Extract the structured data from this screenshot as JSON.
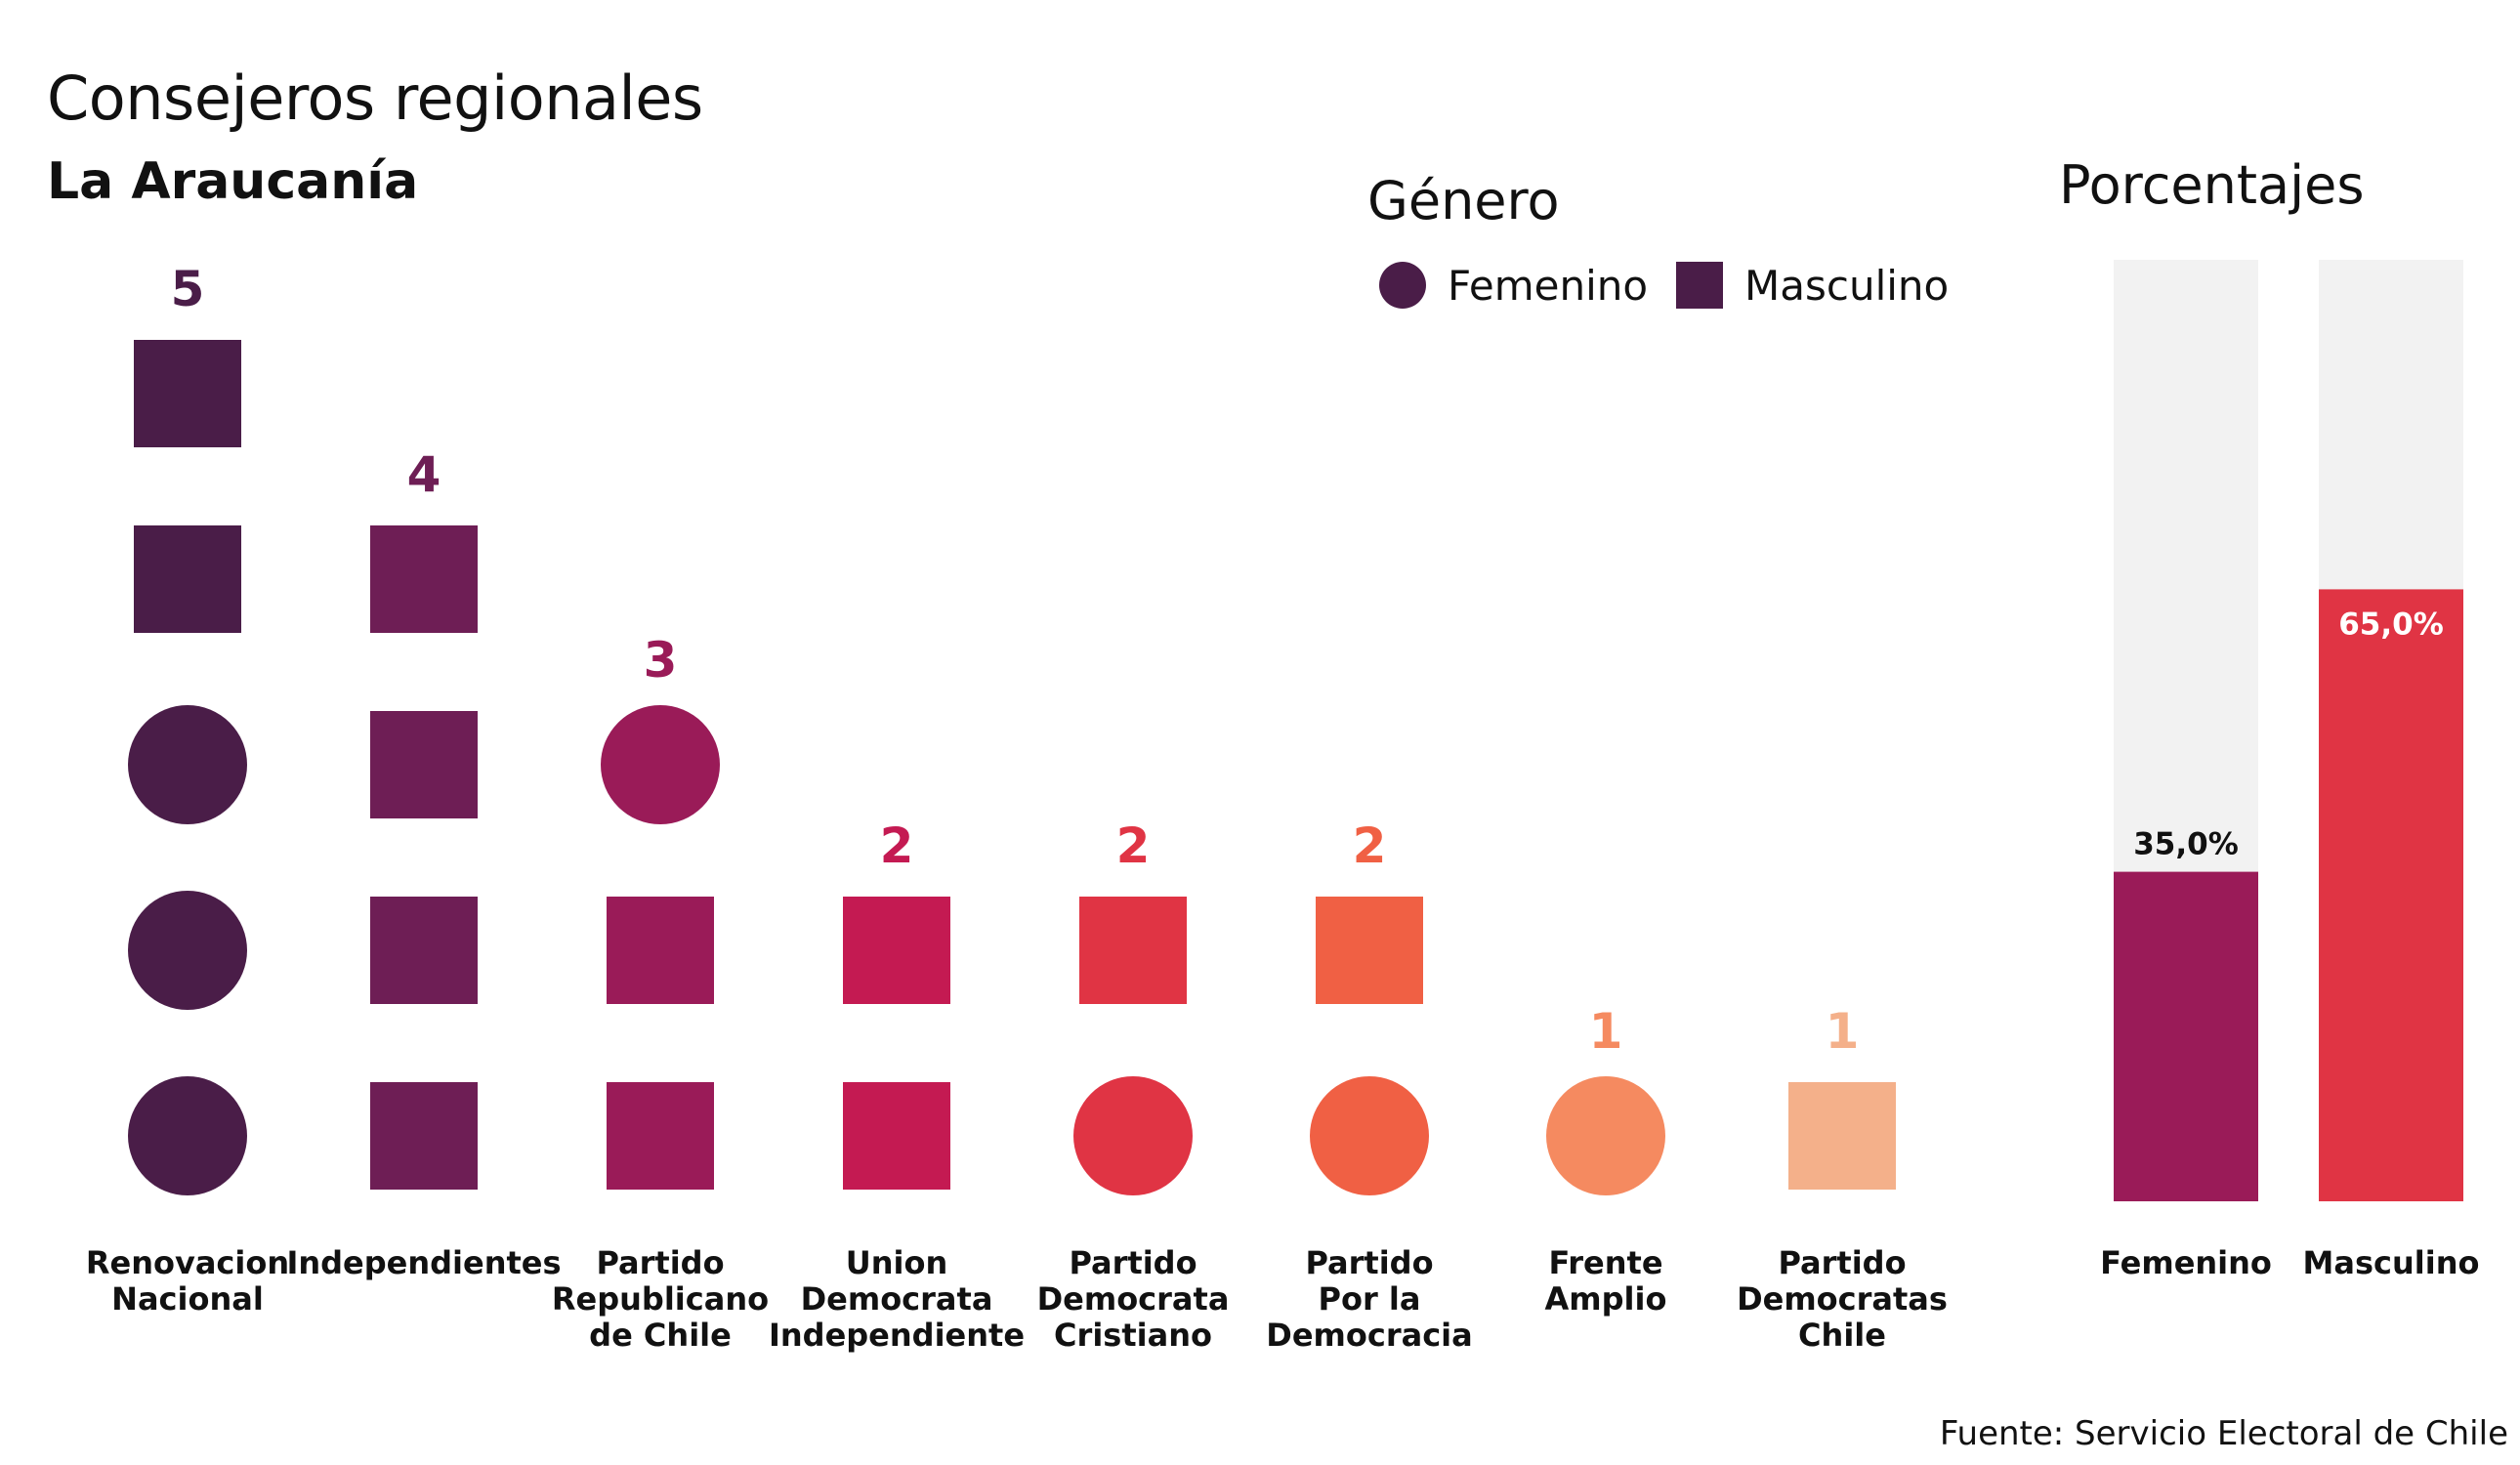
{
  "title": "Consejeros regionales",
  "subtitle": "La Araucanía",
  "source": "Fuente: Servicio Electoral de Chile",
  "legend": {
    "title": "Género",
    "items": [
      {
        "label": "Femenino",
        "shape": "circle"
      },
      {
        "label": "Masculino",
        "shape": "square"
      }
    ],
    "color": "#4a1d48"
  },
  "percent_panel_title": "Porcentajes",
  "chart_data": [
    {
      "type": "unit-stack",
      "categories": [
        {
          "label": [
            "Renovacion",
            "Nacional"
          ],
          "total": "5",
          "color": "#4a1d48",
          "units_bottom_to_top": [
            "Femenino",
            "Femenino",
            "Femenino",
            "Masculino",
            "Masculino"
          ]
        },
        {
          "label": [
            "Independientes"
          ],
          "total": "4",
          "color": "#6e1e55",
          "units_bottom_to_top": [
            "Masculino",
            "Masculino",
            "Masculino",
            "Masculino"
          ]
        },
        {
          "label": [
            "Partido",
            "Republicano",
            "de Chile"
          ],
          "total": "3",
          "color": "#9a1b58",
          "units_bottom_to_top": [
            "Masculino",
            "Masculino",
            "Femenino"
          ]
        },
        {
          "label": [
            "Union",
            "Democrata",
            "Independiente"
          ],
          "total": "2",
          "color": "#c41a52",
          "units_bottom_to_top": [
            "Masculino",
            "Masculino"
          ]
        },
        {
          "label": [
            "Partido",
            "Democrata",
            "Cristiano"
          ],
          "total": "2",
          "color": "#e03444",
          "units_bottom_to_top": [
            "Femenino",
            "Masculino"
          ]
        },
        {
          "label": [
            "Partido",
            "Por la",
            "Democracia"
          ],
          "total": "2",
          "color": "#f06044",
          "units_bottom_to_top": [
            "Femenino",
            "Masculino"
          ]
        },
        {
          "label": [
            "Frente",
            "Amplio"
          ],
          "total": "1",
          "color": "#f58a60",
          "units_bottom_to_top": [
            "Femenino"
          ]
        },
        {
          "label": [
            "Partido",
            "Democratas",
            "Chile"
          ],
          "total": "1",
          "color": "#f4b08a",
          "units_bottom_to_top": [
            "Masculino"
          ]
        }
      ]
    },
    {
      "type": "bar",
      "categories": [
        "Femenino",
        "Masculino"
      ],
      "values": [
        35.0,
        65.0
      ],
      "value_labels": [
        "35,0%",
        "65,0%"
      ],
      "ylim": [
        0,
        100
      ],
      "colors": [
        "#9a1b58",
        "#e03444"
      ],
      "track_color": "#f2f2f2"
    }
  ]
}
